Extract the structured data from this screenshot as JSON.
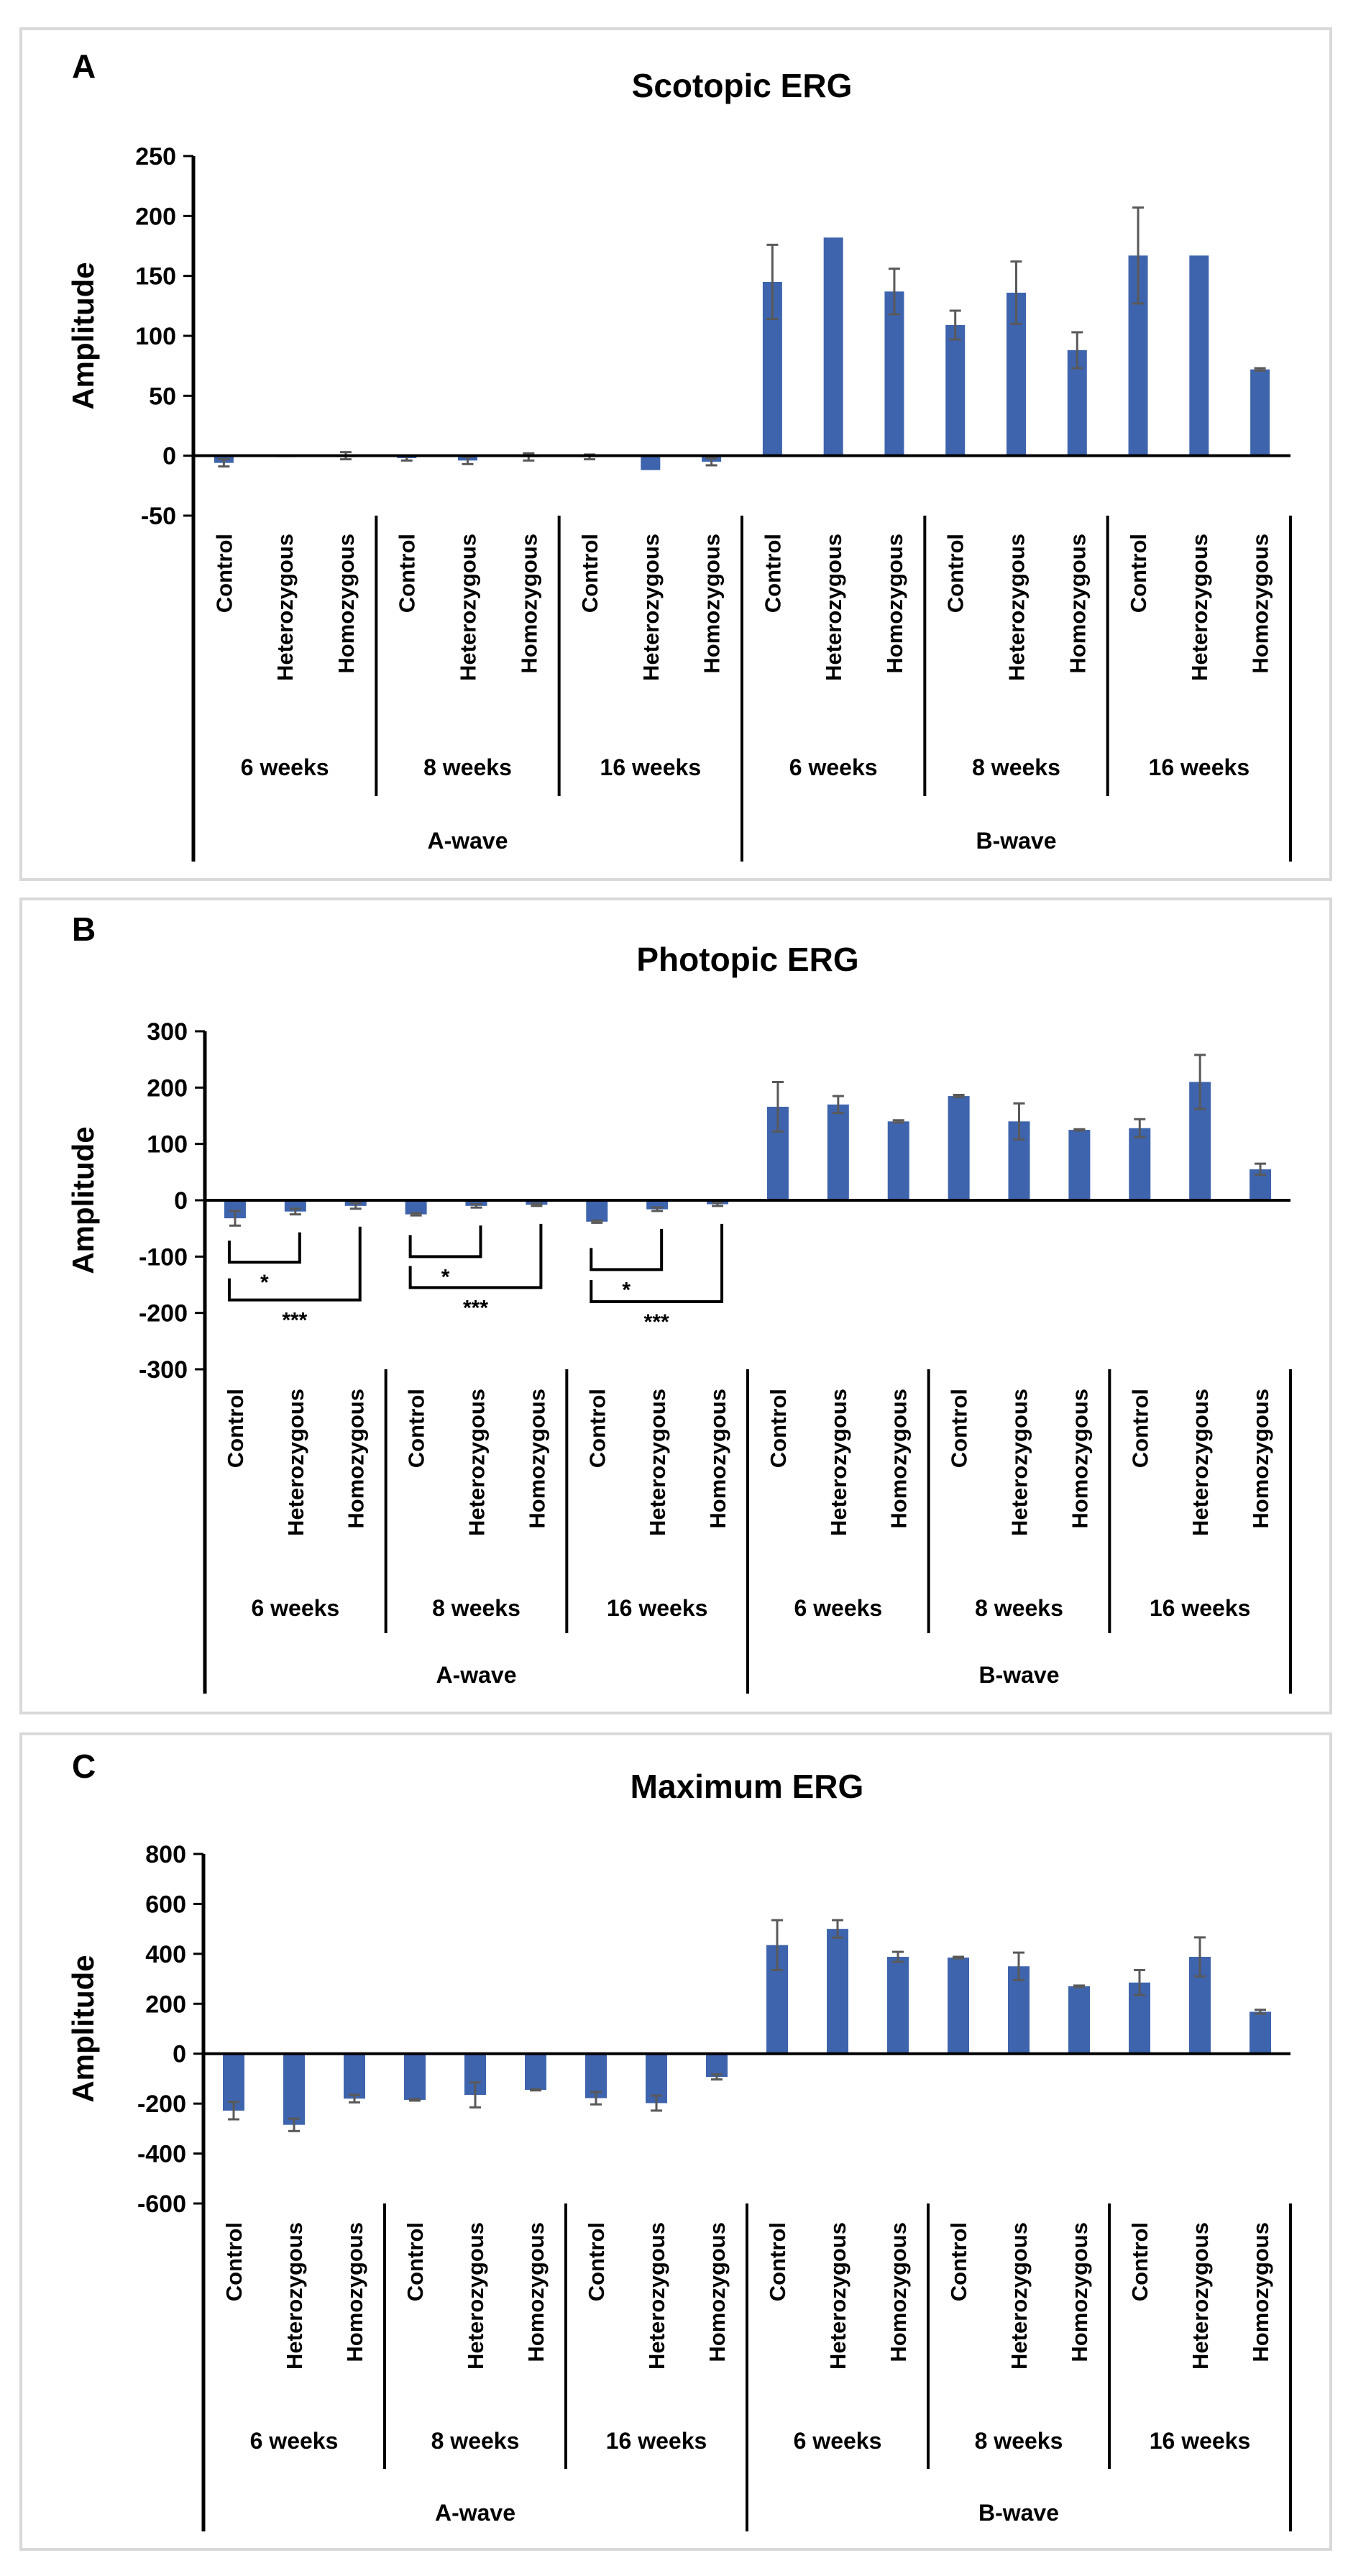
{
  "chart_data": [
    {
      "type": "bar",
      "panel_label": "A",
      "title": "Scotopic ERG",
      "ylabel": "Amplitude",
      "xlabel": "",
      "ylim": [
        -50,
        250
      ],
      "yticks": [
        250,
        200,
        150,
        100,
        50,
        0,
        -50
      ],
      "ytick_labels": [
        "250",
        "200",
        "150",
        "100",
        "50",
        "0",
        "-50"
      ],
      "grid": false,
      "categories": [
        "Control",
        "Heterozygous",
        "Homozygous",
        "Control",
        "Heterozygous",
        "Homozygous",
        "Control",
        "Heterozygous",
        "Homozygous",
        "Control",
        "Heterozygous",
        "Homozygous",
        "Control",
        "Heterozygous",
        "Homozygous",
        "Control",
        "Heterozygous",
        "Homozygous"
      ],
      "groups": [
        "6 weeks",
        "8 weeks",
        "16 weeks",
        "6 weeks",
        "8 weeks",
        "16 weeks"
      ],
      "waves": [
        "A-wave",
        "B-wave"
      ],
      "values": [
        -6,
        -1,
        0,
        -2,
        -4,
        -1,
        -1,
        -12,
        -5,
        145,
        182,
        137,
        109,
        136,
        88,
        167,
        167,
        72
      ],
      "errors": [
        3,
        0,
        3,
        2,
        3,
        3,
        2,
        0,
        3,
        31,
        0,
        19,
        12,
        26,
        15,
        40,
        0,
        1
      ],
      "significance": []
    },
    {
      "type": "bar",
      "panel_label": "B",
      "title": "Photopic ERG",
      "ylabel": "Amplitude",
      "xlabel": "",
      "ylim": [
        -300,
        300
      ],
      "yticks": [
        300,
        200,
        100,
        0,
        -100,
        -200,
        -300
      ],
      "ytick_labels": [
        "300",
        "200",
        "100",
        "0",
        "-100",
        "-200",
        "-300"
      ],
      "grid": false,
      "categories": [
        "Control",
        "Heterozygous",
        "Homozygous",
        "Control",
        "Heterozygous",
        "Homozygous",
        "Control",
        "Heterozygous",
        "Homozygous",
        "Control",
        "Heterozygous",
        "Homozygous",
        "Control",
        "Heterozygous",
        "Homozygous",
        "Control",
        "Heterozygous",
        "Homozygous"
      ],
      "groups": [
        "6 weeks",
        "8 weeks",
        "16 weeks",
        "6 weeks",
        "8 weeks",
        "16 weeks"
      ],
      "waves": [
        "A-wave",
        "B-wave"
      ],
      "values": [
        -32,
        -20,
        -10,
        -25,
        -10,
        -8,
        -38,
        -16,
        -7,
        166,
        170,
        140,
        185,
        140,
        125,
        128,
        210,
        55
      ],
      "errors": [
        13,
        5,
        5,
        2,
        3,
        2,
        2,
        3,
        3,
        44,
        15,
        2,
        2,
        32,
        1,
        16,
        48,
        10
      ],
      "significance": [
        {
          "from": 0,
          "to": 1,
          "level": -110,
          "label": "*"
        },
        {
          "from": 0,
          "to": 2,
          "level": -177,
          "label": "***"
        },
        {
          "from": 3,
          "to": 4,
          "level": -100,
          "label": "*"
        },
        {
          "from": 3,
          "to": 5,
          "level": -155,
          "label": "***"
        },
        {
          "from": 6,
          "to": 7,
          "level": -123,
          "label": "*"
        },
        {
          "from": 6,
          "to": 8,
          "level": -180,
          "label": "***"
        }
      ]
    },
    {
      "type": "bar",
      "panel_label": "C",
      "title": "Maximum ERG",
      "ylabel": "Amplitude",
      "xlabel": "",
      "ylim": [
        -600,
        800
      ],
      "yticks": [
        800,
        600,
        400,
        200,
        0,
        -200,
        -400,
        -600
      ],
      "ytick_labels": [
        "800",
        "600",
        "400",
        "200",
        "0",
        "-200",
        "-400",
        "-600"
      ],
      "grid": false,
      "categories": [
        "Control",
        "Heterozygous",
        "Homozygous",
        "Control",
        "Heterozygous",
        "Homozygous",
        "Control",
        "Heterozygous",
        "Homozygous",
        "Control",
        "Heterozygous",
        "Homozygous",
        "Control",
        "Heterozygous",
        "Homozygous",
        "Control",
        "Heterozygous",
        "Homozygous"
      ],
      "groups": [
        "6 weeks",
        "8 weeks",
        "16 weeks",
        "6 weeks",
        "8 weeks",
        "16 weeks"
      ],
      "waves": [
        "A-wave",
        "B-wave"
      ],
      "values": [
        -228,
        -285,
        -180,
        -185,
        -165,
        -145,
        -178,
        -198,
        -93,
        435,
        500,
        388,
        385,
        350,
        270,
        285,
        388,
        168
      ],
      "errors": [
        35,
        25,
        15,
        3,
        50,
        2,
        25,
        30,
        10,
        100,
        35,
        20,
        3,
        55,
        3,
        50,
        78,
        8
      ],
      "significance": []
    }
  ],
  "colors": {
    "bar": "#3e64ad",
    "error": "#595959",
    "axis": "#000000",
    "panel_border": "#d9d9d9"
  }
}
